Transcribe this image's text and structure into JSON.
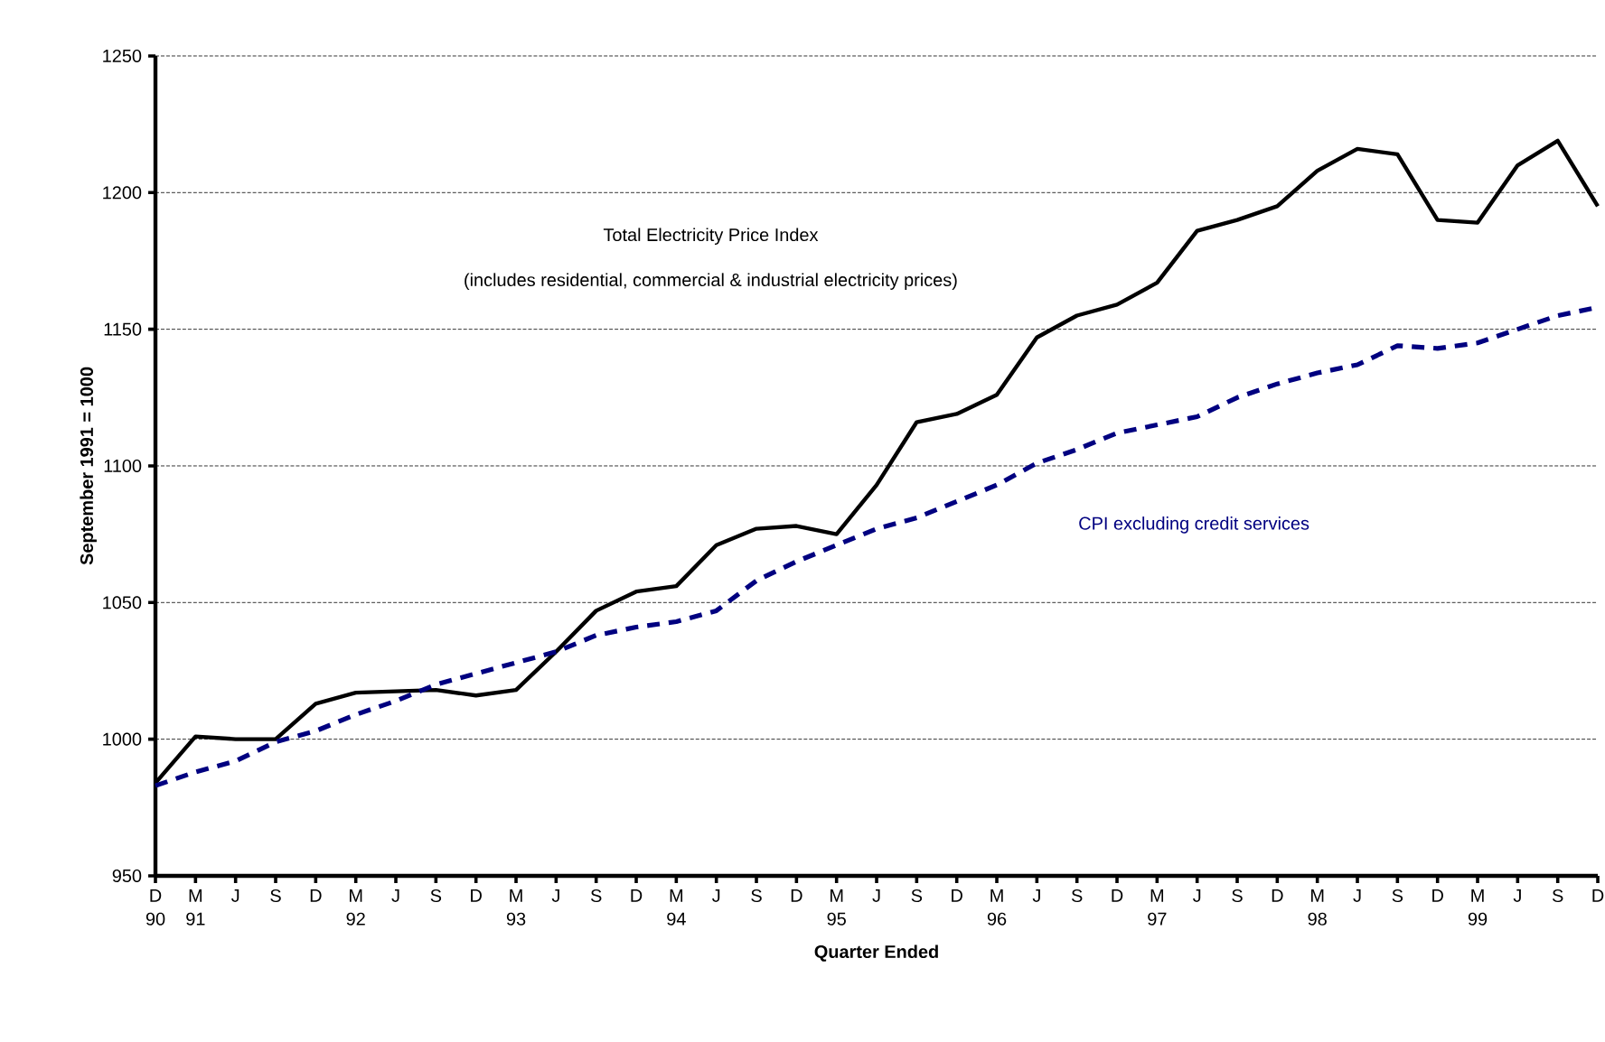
{
  "chart_data": {
    "type": "line",
    "xlabel": "Quarter Ended",
    "ylabel": "September 1991 = 1000",
    "categories": [
      "D 90",
      "M 91",
      "J",
      "S",
      "D",
      "M 92",
      "J",
      "S",
      "D",
      "M 93",
      "J",
      "S",
      "D",
      "M 94",
      "J",
      "S",
      "D",
      "M 95",
      "J",
      "S",
      "D",
      "M 96",
      "J",
      "S",
      "D",
      "M 97",
      "J",
      "S",
      "D",
      "M 98",
      "J",
      "S",
      "D",
      "M 99",
      "J",
      "S",
      "D"
    ],
    "series": [
      {
        "name": "Total Electricity Price Index",
        "color": "#000000",
        "line_style": "solid",
        "values": [
          984,
          1001,
          1000,
          1000,
          1013,
          1017,
          1017.5,
          1018,
          1016,
          1018,
          1032,
          1047,
          1054,
          1056,
          1071,
          1077,
          1078,
          1075,
          1093,
          1116,
          1119,
          1126,
          1147,
          1155,
          1159,
          1167,
          1186,
          1190,
          1195,
          1208,
          1216,
          1214,
          1190,
          1189,
          1210,
          1219,
          1195
        ]
      },
      {
        "name": "CPI excluding credit services",
        "color": "#000080",
        "line_style": "dashed",
        "values": [
          983,
          988,
          992,
          999,
          1003,
          1009,
          1014,
          1020,
          1024,
          1028,
          1032,
          1038,
          1041,
          1043,
          1047,
          1058,
          1065,
          1071,
          1077,
          1081,
          1087,
          1093,
          1101,
          1106,
          1112,
          1115,
          1118,
          1125,
          1130,
          1134,
          1137,
          1144,
          1143,
          1145,
          1150,
          1155,
          1158
        ]
      }
    ],
    "annotations": [
      "(includes residential, commercial & industrial electricity prices)"
    ],
    "ylim": [
      950,
      1250
    ],
    "yticks": [
      950,
      1000,
      1050,
      1100,
      1150,
      1200,
      1250
    ],
    "grid": "y",
    "legend": false,
    "marker": "none"
  }
}
